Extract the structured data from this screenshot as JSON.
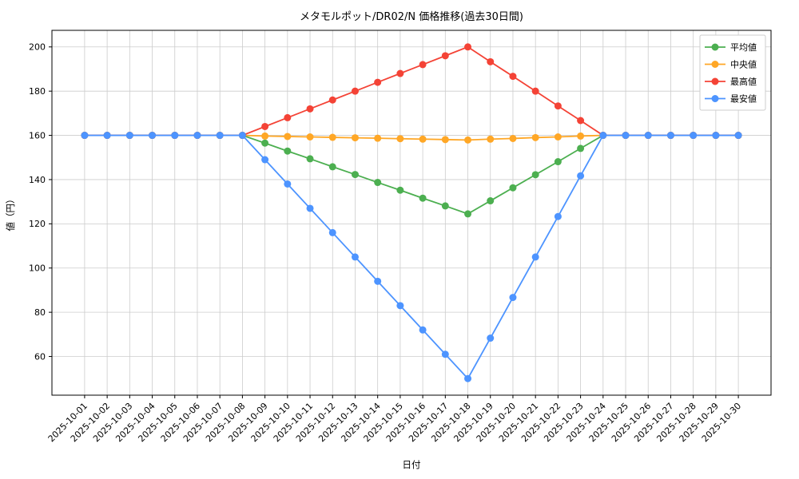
{
  "chart_data": {
    "type": "line",
    "title": "メタモルポット/DR02/N 価格推移(過去30日間)",
    "xlabel": "日付",
    "ylabel": "値（円）",
    "grid": true,
    "legend_position": "upper right",
    "ylim": [
      42.5,
      207.5
    ],
    "yticks": [
      60,
      80,
      100,
      120,
      140,
      160,
      180,
      200
    ],
    "x": [
      "2025-10-01",
      "2025-10-02",
      "2025-10-03",
      "2025-10-04",
      "2025-10-05",
      "2025-10-06",
      "2025-10-07",
      "2025-10-08",
      "2025-10-09",
      "2025-10-10",
      "2025-10-11",
      "2025-10-12",
      "2025-10-13",
      "2025-10-14",
      "2025-10-15",
      "2025-10-16",
      "2025-10-17",
      "2025-10-18",
      "2025-10-19",
      "2025-10-20",
      "2025-10-21",
      "2025-10-22",
      "2025-10-23",
      "2025-10-24",
      "2025-10-25",
      "2025-10-26",
      "2025-10-27",
      "2025-10-28",
      "2025-10-29",
      "2025-10-30"
    ],
    "series": [
      {
        "id": "average",
        "name": "平均値",
        "color": "#4caf50",
        "values": [
          160,
          160,
          160,
          160,
          160,
          160,
          160,
          160,
          156.5,
          152.9,
          149.4,
          145.8,
          142.3,
          138.7,
          135.2,
          131.6,
          128.1,
          124.5,
          130.4,
          136.3,
          142.2,
          148.1,
          154.1,
          160,
          160,
          160,
          160,
          160,
          160,
          160
        ]
      },
      {
        "id": "median",
        "name": "中央値",
        "color": "#ffa726",
        "values": [
          160,
          160,
          160,
          160,
          160,
          160,
          160,
          160,
          159.7,
          159.5,
          159.3,
          159.1,
          158.9,
          158.7,
          158.5,
          158.3,
          158.1,
          157.9,
          158.3,
          158.6,
          159.0,
          159.3,
          159.7,
          160,
          160,
          160,
          160,
          160,
          160,
          160
        ]
      },
      {
        "id": "max",
        "name": "最高値",
        "color": "#f44336",
        "values": [
          160,
          160,
          160,
          160,
          160,
          160,
          160,
          160,
          164,
          168,
          172,
          176,
          180,
          184,
          188,
          192,
          196,
          200,
          193.3,
          186.7,
          180,
          173.3,
          166.7,
          160,
          160,
          160,
          160,
          160,
          160,
          160
        ]
      },
      {
        "id": "min",
        "name": "最安値",
        "color": "#4d94ff",
        "values": [
          160,
          160,
          160,
          160,
          160,
          160,
          160,
          160,
          149,
          138,
          127,
          116,
          105,
          94,
          83,
          72,
          61,
          50,
          68.3,
          86.7,
          105,
          123.3,
          141.7,
          160,
          160,
          160,
          160,
          160,
          160,
          160
        ]
      }
    ]
  }
}
